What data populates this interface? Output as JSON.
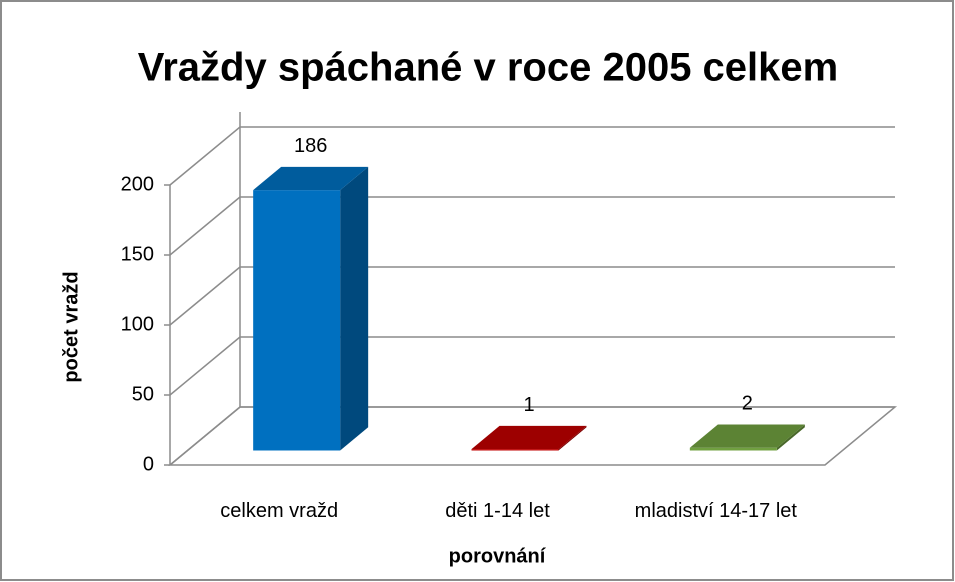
{
  "chart_data": {
    "type": "bar3d",
    "title": "Vraždy spáchané v roce 2005 celkem",
    "xlabel": "porovnání",
    "ylabel": "počet vražd",
    "categories": [
      "celkem vražd",
      "děti 1-14 let",
      "mladiství 14-17 let"
    ],
    "values": [
      186,
      1,
      2
    ],
    "colors": [
      "#0070c0",
      "#c00000",
      "#70a040"
    ],
    "ylim": [
      0,
      200
    ],
    "yticks": [
      0,
      50,
      100,
      150,
      200
    ],
    "grid": true
  }
}
